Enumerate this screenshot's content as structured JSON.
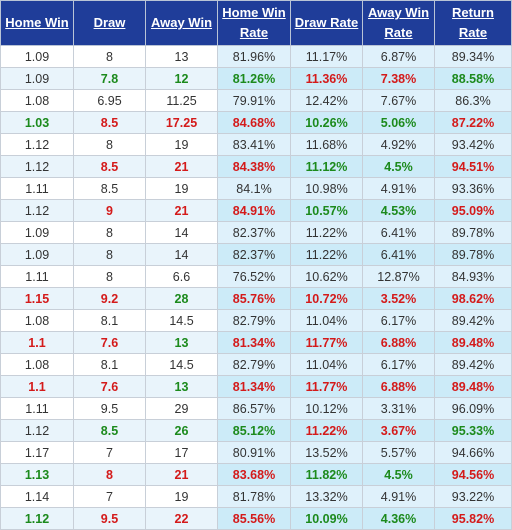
{
  "columns": [
    "Home Win",
    "Draw",
    "Away Win",
    "Home Win Rate",
    "Draw Rate",
    "Away Win Rate",
    "Return Rate"
  ],
  "colors": {
    "header_bg": "#1f3d99",
    "positive": "#1c8a1c",
    "negative": "#d41a1a"
  },
  "rows": [
    {
      "cells": [
        "1.09",
        "8",
        "13",
        "81.96%",
        "11.17%",
        "6.87%",
        "89.34%"
      ],
      "highlight": "none"
    },
    {
      "cells": [
        "1.09",
        "7.8",
        "12",
        "81.26%",
        "11.36%",
        "7.38%",
        "88.58%"
      ],
      "highlight": "pattern1"
    },
    {
      "cells": [
        "1.08",
        "6.95",
        "11.25",
        "79.91%",
        "12.42%",
        "7.67%",
        "86.3%"
      ],
      "highlight": "none"
    },
    {
      "cells": [
        "1.03",
        "8.5",
        "17.25",
        "84.68%",
        "10.26%",
        "5.06%",
        "87.22%"
      ],
      "highlight": "pattern2"
    },
    {
      "cells": [
        "1.12",
        "8",
        "19",
        "83.41%",
        "11.68%",
        "4.92%",
        "93.42%"
      ],
      "highlight": "none"
    },
    {
      "cells": [
        "1.12",
        "8.5",
        "21",
        "84.38%",
        "11.12%",
        "4.5%",
        "94.51%"
      ],
      "highlight": "pattern3"
    },
    {
      "cells": [
        "1.11",
        "8.5",
        "19",
        "84.1%",
        "10.98%",
        "4.91%",
        "93.36%"
      ],
      "highlight": "none"
    },
    {
      "cells": [
        "1.12",
        "9",
        "21",
        "84.91%",
        "10.57%",
        "4.53%",
        "95.09%"
      ],
      "highlight": "pattern3"
    },
    {
      "cells": [
        "1.09",
        "8",
        "14",
        "82.37%",
        "11.22%",
        "6.41%",
        "89.78%"
      ],
      "highlight": "none"
    },
    {
      "cells": [
        "1.09",
        "8",
        "14",
        "82.37%",
        "11.22%",
        "6.41%",
        "89.78%"
      ],
      "highlight": "none"
    },
    {
      "cells": [
        "1.11",
        "8",
        "6.6",
        "76.52%",
        "10.62%",
        "12.87%",
        "84.93%"
      ],
      "highlight": "none"
    },
    {
      "cells": [
        "1.15",
        "9.2",
        "28",
        "85.76%",
        "10.72%",
        "3.52%",
        "98.62%"
      ],
      "highlight": "pattern4"
    },
    {
      "cells": [
        "1.08",
        "8.1",
        "14.5",
        "82.79%",
        "11.04%",
        "6.17%",
        "89.42%"
      ],
      "highlight": "none"
    },
    {
      "cells": [
        "1.1",
        "7.6",
        "13",
        "81.34%",
        "11.77%",
        "6.88%",
        "89.48%"
      ],
      "highlight": "pattern4"
    },
    {
      "cells": [
        "1.08",
        "8.1",
        "14.5",
        "82.79%",
        "11.04%",
        "6.17%",
        "89.42%"
      ],
      "highlight": "none"
    },
    {
      "cells": [
        "1.1",
        "7.6",
        "13",
        "81.34%",
        "11.77%",
        "6.88%",
        "89.48%"
      ],
      "highlight": "pattern4"
    },
    {
      "cells": [
        "1.11",
        "9.5",
        "29",
        "86.57%",
        "10.12%",
        "3.31%",
        "96.09%"
      ],
      "highlight": "none"
    },
    {
      "cells": [
        "1.12",
        "8.5",
        "26",
        "85.12%",
        "11.22%",
        "3.67%",
        "95.33%"
      ],
      "highlight": "pattern1"
    },
    {
      "cells": [
        "1.17",
        "7",
        "17",
        "80.91%",
        "13.52%",
        "5.57%",
        "94.66%"
      ],
      "highlight": "none"
    },
    {
      "cells": [
        "1.13",
        "8",
        "21",
        "83.68%",
        "11.82%",
        "4.5%",
        "94.56%"
      ],
      "highlight": "pattern2"
    },
    {
      "cells": [
        "1.14",
        "7",
        "19",
        "81.78%",
        "13.32%",
        "4.91%",
        "93.22%"
      ],
      "highlight": "none"
    },
    {
      "cells": [
        "1.12",
        "9.5",
        "22",
        "85.56%",
        "10.09%",
        "4.36%",
        "95.82%"
      ],
      "highlight": "pattern2"
    }
  ],
  "patterns": {
    "none": [
      "",
      "",
      "",
      "",
      "",
      "",
      ""
    ],
    "pattern1": [
      "",
      "green",
      "green",
      "green",
      "red",
      "red",
      "green"
    ],
    "pattern2": [
      "green",
      "red",
      "red",
      "red",
      "green",
      "green",
      "red"
    ],
    "pattern3": [
      "",
      "red",
      "red",
      "red",
      "green",
      "green",
      "red"
    ],
    "pattern4": [
      "red",
      "red",
      "green",
      "red",
      "red",
      "red",
      "red"
    ]
  }
}
